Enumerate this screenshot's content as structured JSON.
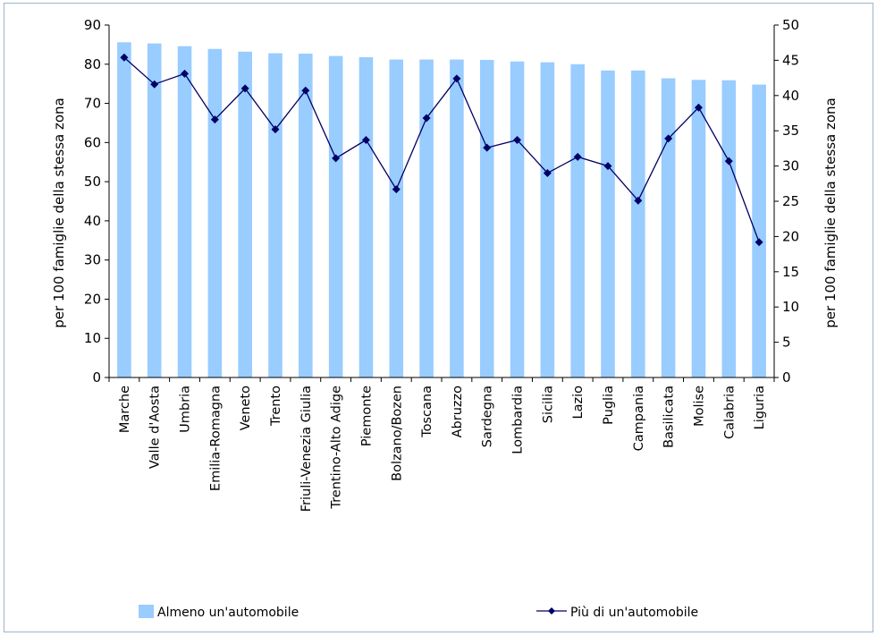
{
  "chart_data": {
    "type": "bar",
    "categories": [
      "Marche",
      "Valle d'Aosta",
      "Umbria",
      "Emilia-Romagna",
      "Veneto",
      "Trento",
      "Friuli-Venezia Giulia",
      "Trentino-Alto Adige",
      "Piemonte",
      "Bolzano/Bozen",
      "Toscana",
      "Abruzzo",
      "Sardegna",
      "Lombardia",
      "Sicilia",
      "Lazio",
      "Puglia",
      "Campania",
      "Basilicata",
      "Molise",
      "Calabria",
      "Liguria"
    ],
    "series": [
      {
        "name": "Almeno un'automobile",
        "type": "bar",
        "axis": "left",
        "color": "#99ccff",
        "values": [
          85.6,
          85.3,
          84.6,
          83.9,
          83.2,
          82.8,
          82.7,
          82.1,
          81.8,
          81.2,
          81.2,
          81.2,
          81.1,
          80.7,
          80.5,
          80.0,
          78.4,
          78.4,
          76.4,
          76.0,
          75.9,
          74.8
        ]
      },
      {
        "name": "Più di un'automobile",
        "type": "line",
        "axis": "right",
        "color": "#000066",
        "marker": "diamond",
        "values": [
          45.4,
          41.6,
          43.1,
          36.6,
          41.0,
          35.2,
          40.7,
          31.1,
          33.7,
          26.7,
          36.8,
          42.4,
          32.6,
          33.7,
          29.0,
          31.3,
          30.0,
          25.1,
          33.9,
          38.3,
          30.7,
          19.2
        ]
      }
    ],
    "ylabel_left": "per 100 famiglie della stessa zona",
    "ylabel_right": "per 100 famiglie della stessa zona",
    "ylim_left": [
      0,
      90
    ],
    "yticks_left": [
      0,
      10,
      20,
      30,
      40,
      50,
      60,
      70,
      80,
      90
    ],
    "ylim_right": [
      0,
      50
    ],
    "yticks_right": [
      0,
      5,
      10,
      15,
      20,
      25,
      30,
      35,
      40,
      45,
      50
    ],
    "grid": false,
    "legend_position": "bottom"
  }
}
